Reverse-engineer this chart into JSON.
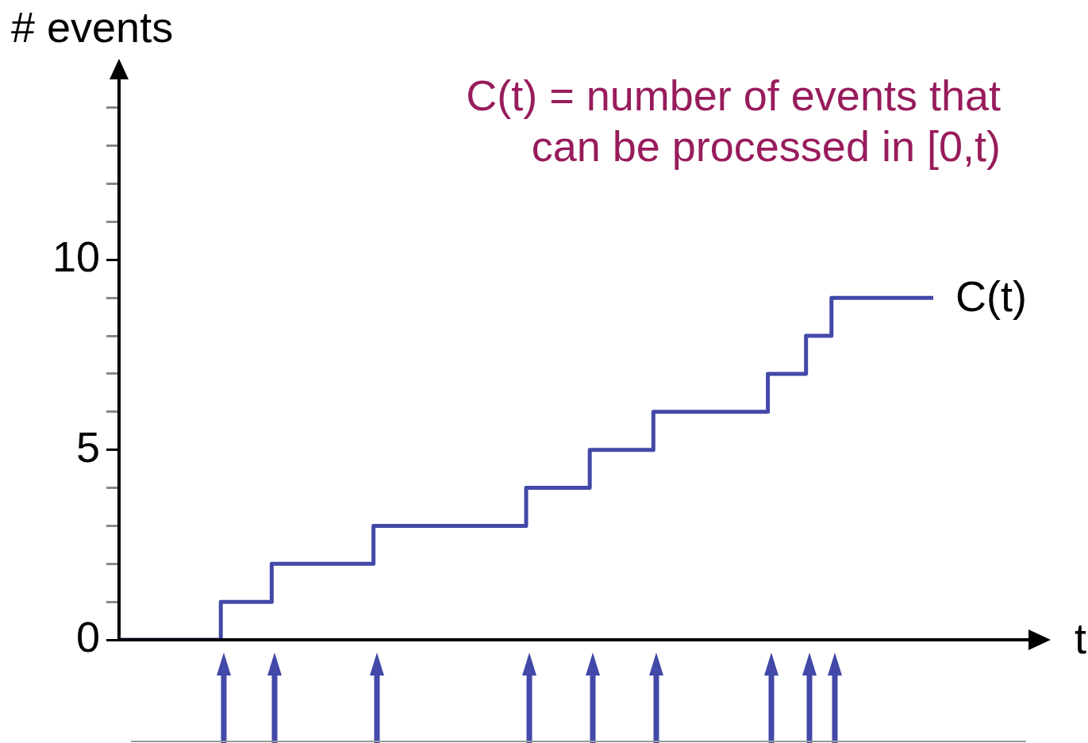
{
  "chart_data": {
    "type": "step",
    "ylabel": "# events",
    "xlabel": "t",
    "annotations": [
      "C(t) = number of events that can be processed in [0,t)"
    ],
    "categories": [
      null,
      null,
      null,
      null,
      null,
      null,
      null,
      null,
      null,
      null,
      null,
      null,
      null,
      null,
      null,
      null,
      null,
      null,
      null,
      null,
      null,
      null,
      null,
      null,
      null,
      null,
      null,
      null,
      null,
      null,
      null,
      null,
      null,
      null,
      null,
      null,
      null,
      null,
      null,
      null,
      null,
      null,
      null,
      null,
      null,
      null,
      null,
      null,
      null,
      null,
      null,
      null,
      null,
      null,
      null,
      null,
      null,
      null,
      null,
      null,
      null,
      null,
      null,
      null,
      null
    ],
    "series": [
      {
        "name": "C(t)",
        "color": "#4349a8",
        "values": [
          0,
          0,
          0,
          0,
          0,
          0,
          0,
          0,
          1,
          1,
          1,
          1,
          2,
          2,
          2,
          2,
          2,
          2,
          2,
          2,
          3,
          3,
          3,
          3,
          3,
          3,
          3,
          3,
          3,
          3,
          3,
          3,
          4,
          4,
          4,
          4,
          4,
          5,
          5,
          5,
          5,
          5,
          6,
          6,
          6,
          6,
          6,
          6,
          6,
          6,
          6,
          7,
          7,
          7,
          8,
          8,
          9,
          9,
          9,
          9,
          9,
          9,
          9,
          9,
          9
        ]
      }
    ],
    "ylim": [
      0,
      15
    ],
    "yticks": [
      0,
      {
        "value": 1,
        "label": null
      },
      {
        "value": 2,
        "label": null
      },
      {
        "value": 3,
        "label": null
      },
      {
        "value": 4,
        "label": null
      },
      5,
      {
        "value": 6,
        "label": null
      },
      {
        "value": 7,
        "label": null
      },
      {
        "value": 8,
        "label": null
      },
      {
        "value": 9,
        "label": null
      },
      10,
      {
        "value": 11,
        "label": null
      },
      {
        "value": 12,
        "label": null
      },
      {
        "value": 13,
        "label": null
      },
      {
        "value": 14,
        "label": null
      }
    ],
    "tick_labels": "y",
    "legend": false,
    "marker": "none",
    "line_style": "solid"
  }
}
